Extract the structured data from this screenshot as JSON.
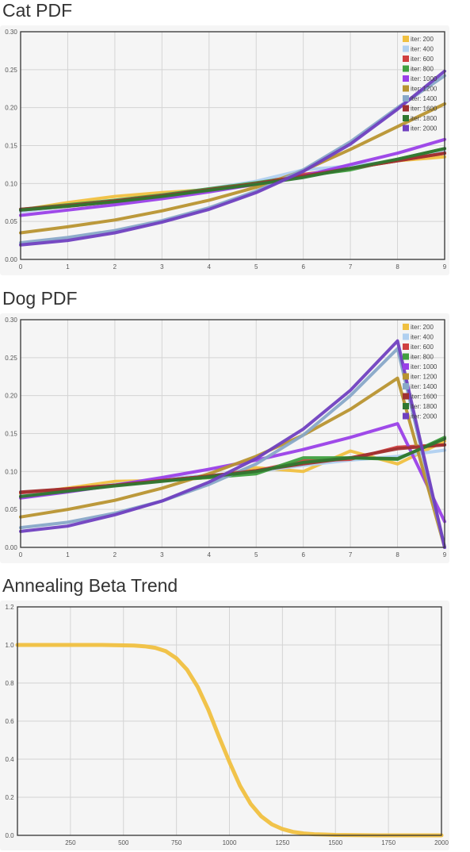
{
  "sections": {
    "cat_title": "Cat PDF",
    "dog_title": "Dog PDF",
    "beta_title": "Annealing Beta Trend"
  },
  "colors": {
    "iter 200": "#f0c040",
    "iter 400": "#b0d0f0",
    "iter 600": "#d04040",
    "iter 800": "#40a040",
    "iter 1000": "#9a40e8",
    "iter 1200": "#b89430",
    "iter 1400": "#88a8c8",
    "iter 1600": "#a03030",
    "iter 1800": "#307830",
    "iter 2000": "#7040c0"
  },
  "chart_data": [
    {
      "id": "cat",
      "type": "line",
      "title": "Cat PDF",
      "x": [
        0,
        1,
        2,
        3,
        4,
        5,
        6,
        7,
        8,
        9
      ],
      "xticks": [
        "0",
        "1",
        "2",
        "3",
        "4",
        "5",
        "6",
        "7",
        "8",
        "9"
      ],
      "yticks": [
        "0.00",
        "0.05",
        "0.10",
        "0.15",
        "0.20",
        "0.25",
        "0.30"
      ],
      "ylim": [
        0,
        0.3
      ],
      "xlim": [
        0,
        9
      ],
      "grid": true,
      "legend_position": "top-right",
      "series": [
        {
          "name": "iter: 200",
          "color": "#f0c040",
          "values": [
            0.065,
            0.075,
            0.083,
            0.088,
            0.092,
            0.098,
            0.11,
            0.12,
            0.13,
            0.135
          ]
        },
        {
          "name": "iter: 400",
          "color": "#b0d0f0",
          "values": [
            0.063,
            0.07,
            0.077,
            0.085,
            0.093,
            0.103,
            0.118,
            0.123,
            0.13,
            0.142
          ]
        },
        {
          "name": "iter: 600",
          "color": "#d04040",
          "values": [
            0.065,
            0.07,
            0.076,
            0.083,
            0.092,
            0.1,
            0.112,
            0.12,
            0.13,
            0.14
          ]
        },
        {
          "name": "iter: 800",
          "color": "#40a040",
          "values": [
            0.066,
            0.072,
            0.078,
            0.085,
            0.093,
            0.101,
            0.11,
            0.118,
            0.132,
            0.146
          ]
        },
        {
          "name": "iter: 1000",
          "color": "#9a40e8",
          "values": [
            0.058,
            0.065,
            0.072,
            0.08,
            0.089,
            0.099,
            0.11,
            0.125,
            0.14,
            0.158
          ]
        },
        {
          "name": "iter: 1200",
          "color": "#b89430",
          "values": [
            0.035,
            0.043,
            0.052,
            0.064,
            0.078,
            0.095,
            0.117,
            0.145,
            0.175,
            0.205
          ]
        },
        {
          "name": "iter: 1400",
          "color": "#88a8c8",
          "values": [
            0.022,
            0.029,
            0.038,
            0.051,
            0.068,
            0.09,
            0.118,
            0.155,
            0.2,
            0.242
          ]
        },
        {
          "name": "iter: 1600",
          "color": "#a03030",
          "values": [
            0.066,
            0.071,
            0.077,
            0.084,
            0.092,
            0.1,
            0.11,
            0.12,
            0.13,
            0.14
          ]
        },
        {
          "name": "iter: 1800",
          "color": "#307830",
          "values": [
            0.065,
            0.07,
            0.076,
            0.083,
            0.091,
            0.099,
            0.108,
            0.12,
            0.132,
            0.146
          ]
        },
        {
          "name": "iter: 2000",
          "color": "#7040c0",
          "values": [
            0.019,
            0.025,
            0.035,
            0.049,
            0.066,
            0.088,
            0.116,
            0.152,
            0.198,
            0.248
          ]
        }
      ]
    },
    {
      "id": "dog",
      "type": "line",
      "title": "Dog PDF",
      "x": [
        0,
        1,
        2,
        3,
        4,
        5,
        6,
        7,
        8,
        9
      ],
      "xticks": [
        "0",
        "1",
        "2",
        "3",
        "4",
        "5",
        "6",
        "7",
        "8",
        "9"
      ],
      "yticks": [
        "0.00",
        "0.05",
        "0.10",
        "0.15",
        "0.20",
        "0.25",
        "0.30"
      ],
      "ylim": [
        0,
        0.3
      ],
      "xlim": [
        0,
        9
      ],
      "grid": true,
      "legend_position": "top-right",
      "series": [
        {
          "name": "iter: 200",
          "color": "#f0c040",
          "values": [
            0.07,
            0.078,
            0.087,
            0.088,
            0.092,
            0.105,
            0.1,
            0.127,
            0.11,
            0.14
          ]
        },
        {
          "name": "iter: 400",
          "color": "#b0d0f0",
          "values": [
            0.068,
            0.076,
            0.083,
            0.09,
            0.095,
            0.1,
            0.108,
            0.115,
            0.12,
            0.128
          ]
        },
        {
          "name": "iter: 600",
          "color": "#d04040",
          "values": [
            0.072,
            0.077,
            0.082,
            0.088,
            0.094,
            0.101,
            0.114,
            0.116,
            0.132,
            0.135
          ]
        },
        {
          "name": "iter: 800",
          "color": "#40a040",
          "values": [
            0.066,
            0.074,
            0.082,
            0.088,
            0.092,
            0.097,
            0.118,
            0.118,
            0.116,
            0.145
          ]
        },
        {
          "name": "iter: 1000",
          "color": "#9a40e8",
          "values": [
            0.065,
            0.073,
            0.082,
            0.092,
            0.103,
            0.115,
            0.129,
            0.145,
            0.163,
            0.034
          ]
        },
        {
          "name": "iter: 1200",
          "color": "#b89430",
          "values": [
            0.04,
            0.05,
            0.062,
            0.078,
            0.097,
            0.12,
            0.148,
            0.182,
            0.223,
            0.0
          ]
        },
        {
          "name": "iter: 1400",
          "color": "#88a8c8",
          "values": [
            0.026,
            0.033,
            0.045,
            0.061,
            0.083,
            0.11,
            0.148,
            0.2,
            0.262,
            0.0
          ]
        },
        {
          "name": "iter: 1600",
          "color": "#a03030",
          "values": [
            0.073,
            0.077,
            0.082,
            0.088,
            0.094,
            0.101,
            0.11,
            0.118,
            0.13,
            0.135
          ]
        },
        {
          "name": "iter: 1800",
          "color": "#307830",
          "values": [
            0.067,
            0.074,
            0.081,
            0.087,
            0.093,
            0.1,
            0.112,
            0.118,
            0.117,
            0.143
          ]
        },
        {
          "name": "iter: 2000",
          "color": "#7040c0",
          "values": [
            0.021,
            0.028,
            0.043,
            0.061,
            0.086,
            0.117,
            0.156,
            0.207,
            0.272,
            0.0
          ]
        }
      ]
    },
    {
      "id": "beta",
      "type": "line",
      "title": "Annealing Beta Trend",
      "xlim": [
        0,
        2000
      ],
      "ylim": [
        0,
        1.2
      ],
      "xticks": [
        "250",
        "500",
        "750",
        "1000",
        "1250",
        "1500",
        "1750",
        "2000"
      ],
      "xtick_values": [
        250,
        500,
        750,
        1000,
        1250,
        1500,
        1750,
        2000
      ],
      "yticks": [
        "0.0",
        "0.2",
        "0.4",
        "0.6",
        "0.8",
        "1.0",
        "1.2"
      ],
      "grid": true,
      "series": [
        {
          "color": "#f0c040",
          "x": [
            0,
            100,
            200,
            300,
            400,
            500,
            550,
            600,
            650,
            700,
            750,
            800,
            850,
            900,
            950,
            1000,
            1050,
            1100,
            1150,
            1200,
            1250,
            1300,
            1350,
            1400,
            1450,
            1500,
            1600,
            1700,
            1800,
            1900,
            2000
          ],
          "values": [
            1.0,
            1.0,
            1.0,
            1.0,
            1.0,
            0.998,
            0.997,
            0.993,
            0.985,
            0.967,
            0.93,
            0.87,
            0.78,
            0.66,
            0.52,
            0.385,
            0.26,
            0.165,
            0.1,
            0.058,
            0.033,
            0.018,
            0.01,
            0.006,
            0.004,
            0.002,
            0.001,
            0.0,
            0.0,
            0.0,
            0.0
          ]
        }
      ]
    }
  ]
}
